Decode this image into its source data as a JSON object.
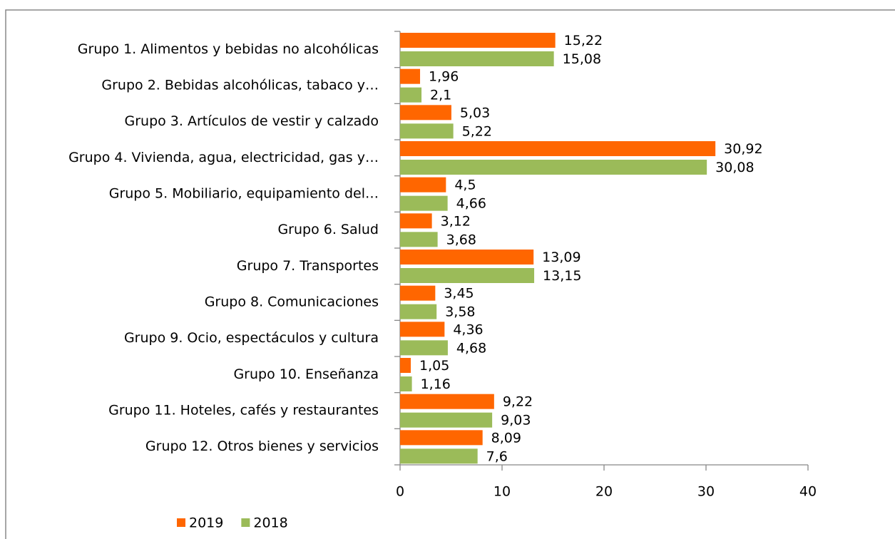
{
  "chart_data": {
    "type": "hbar",
    "categories": [
      "Grupo 1. Alimentos y bebidas no alcohólicas",
      "Grupo 2. Bebidas alcohólicas, tabaco y…",
      "Grupo 3. Artículos de vestir y calzado",
      "Grupo 4. Vivienda, agua, electricidad, gas y…",
      "Grupo 5. Mobiliario, equipamiento del…",
      "Grupo 6. Salud",
      "Grupo 7. Transportes",
      "Grupo 8. Comunicaciones",
      "Grupo 9. Ocio, espectáculos y cultura",
      "Grupo 10. Enseñanza",
      "Grupo 11. Hoteles, cafés y restaurantes",
      "Grupo 12. Otros bienes y servicios"
    ],
    "series": [
      {
        "name": "2019",
        "color": "#ff6600",
        "values": [
          15.22,
          1.96,
          5.03,
          30.92,
          4.5,
          3.12,
          13.09,
          3.45,
          4.36,
          1.05,
          9.22,
          8.09
        ],
        "value_labels": [
          "15,22",
          "1,96",
          "5,03",
          "30,92",
          "4,5",
          "3,12",
          "13,09",
          "3,45",
          "4,36",
          "1,05",
          "9,22",
          "8,09"
        ]
      },
      {
        "name": "2018",
        "color": "#9bbb59",
        "values": [
          15.08,
          2.1,
          5.22,
          30.08,
          4.66,
          3.68,
          13.15,
          3.58,
          4.68,
          1.16,
          9.03,
          7.6
        ],
        "value_labels": [
          "15,08",
          "2,1",
          "5,22",
          "30,08",
          "4,66",
          "3,68",
          "13,15",
          "3,58",
          "4,68",
          "1,16",
          "9,03",
          "7,6"
        ]
      }
    ],
    "xlim": [
      0,
      40
    ],
    "xticks": [
      0,
      10,
      20,
      30,
      40
    ]
  }
}
